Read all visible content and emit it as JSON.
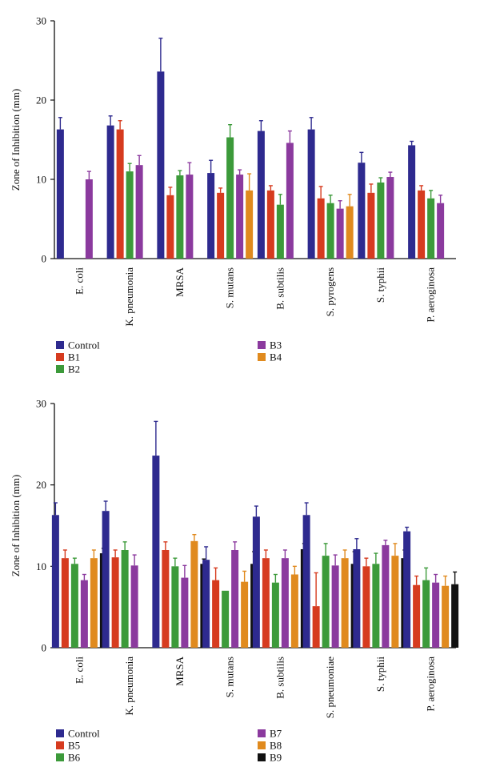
{
  "chart_data": [
    {
      "type": "bar",
      "ylabel": "Zone of Inhibition (mm)",
      "ylim": [
        0,
        30
      ],
      "yticks": [
        0,
        10,
        20,
        30
      ],
      "categories": [
        "E. coli",
        "K. pneumonia",
        "MRSA",
        "S. mutans",
        "B. subtilis",
        "S. pyrogens",
        "S. typhii",
        "P. aeroginosa"
      ],
      "series": [
        {
          "name": "Control",
          "color": "#2e2a8f",
          "values": [
            16.3,
            16.8,
            23.6,
            10.8,
            16.1,
            16.3,
            12.1,
            14.3
          ],
          "errors": [
            1.5,
            1.2,
            4.2,
            1.6,
            1.3,
            1.5,
            1.3,
            0.5
          ]
        },
        {
          "name": "B1",
          "color": "#d63b1f",
          "values": [
            null,
            16.3,
            8.0,
            8.3,
            8.6,
            7.6,
            8.3,
            8.6
          ],
          "errors": [
            null,
            1.1,
            1.0,
            0.6,
            0.6,
            1.5,
            1.1,
            0.6
          ]
        },
        {
          "name": "B2",
          "color": "#3c9a3a",
          "values": [
            null,
            11.0,
            10.5,
            15.3,
            6.8,
            7.0,
            9.6,
            7.6
          ],
          "errors": [
            null,
            1.0,
            0.6,
            1.6,
            1.3,
            1.0,
            0.6,
            1.0
          ]
        },
        {
          "name": "B3",
          "color": "#8b3a9e",
          "values": [
            10.0,
            11.8,
            10.6,
            10.6,
            14.6,
            6.3,
            10.3,
            7.0
          ],
          "errors": [
            1.0,
            1.2,
            1.5,
            0.6,
            1.5,
            1.0,
            0.6,
            1.0
          ]
        },
        {
          "name": "B4",
          "color": "#e08a1e",
          "values": [
            null,
            null,
            null,
            8.6,
            null,
            6.6,
            null,
            null
          ],
          "errors": [
            null,
            null,
            null,
            2.1,
            null,
            1.5,
            null,
            null
          ]
        }
      ],
      "legend": {
        "placement": "bottom",
        "columns": [
          [
            "Control",
            "B1",
            "B2"
          ],
          [
            "B3",
            "B4"
          ]
        ]
      }
    },
    {
      "type": "bar",
      "ylabel": "Zone of Inhibition (mm)",
      "ylim": [
        0,
        30
      ],
      "yticks": [
        0,
        10,
        20,
        30
      ],
      "categories": [
        "E. coli",
        "K. pneumonia",
        "MRSA",
        "S. mutans",
        "B. subtilis",
        "S. pneumoniae",
        "S. typhii",
        "P. aeroginosa"
      ],
      "series": [
        {
          "name": "Control",
          "color": "#2e2a8f",
          "values": [
            16.3,
            16.8,
            23.6,
            10.8,
            16.1,
            16.3,
            12.1,
            14.3
          ],
          "errors": [
            1.5,
            1.2,
            4.2,
            1.6,
            1.3,
            1.5,
            1.3,
            0.5
          ]
        },
        {
          "name": "B5",
          "color": "#d63b1f",
          "values": [
            11.0,
            11.1,
            12.0,
            8.3,
            11.0,
            5.1,
            10.0,
            7.7
          ],
          "errors": [
            1.0,
            0.9,
            1.0,
            1.5,
            1.0,
            4.1,
            1.0,
            1.1
          ]
        },
        {
          "name": "B6",
          "color": "#3c9a3a",
          "values": [
            10.3,
            12.0,
            10.0,
            7.0,
            8.0,
            11.3,
            10.3,
            8.3
          ],
          "errors": [
            0.7,
            1.0,
            1.0,
            0.0,
            1.0,
            1.5,
            1.3,
            1.5
          ]
        },
        {
          "name": "B7",
          "color": "#8b3a9e",
          "values": [
            8.3,
            10.1,
            8.6,
            12.0,
            11.0,
            10.1,
            12.6,
            8.0
          ],
          "errors": [
            0.7,
            1.3,
            1.5,
            1.0,
            1.0,
            1.3,
            0.6,
            1.0
          ]
        },
        {
          "name": "B8",
          "color": "#e08a1e",
          "values": [
            11.0,
            null,
            13.1,
            8.1,
            9.0,
            11.0,
            11.3,
            7.6
          ],
          "errors": [
            1.0,
            null,
            0.8,
            1.3,
            1.0,
            1.0,
            1.5,
            1.2
          ]
        },
        {
          "name": "B9",
          "color": "#111111",
          "values": [
            11.6,
            null,
            10.3,
            10.3,
            12.1,
            10.3,
            11.0,
            7.8
          ],
          "errors": [
            0.6,
            null,
            0.6,
            1.5,
            0.7,
            1.5,
            1.0,
            1.5
          ]
        }
      ],
      "legend": {
        "placement": "bottom",
        "columns": [
          [
            "Control",
            "B5",
            "B6"
          ],
          [
            "B7",
            "B8",
            "B9"
          ]
        ]
      }
    }
  ]
}
